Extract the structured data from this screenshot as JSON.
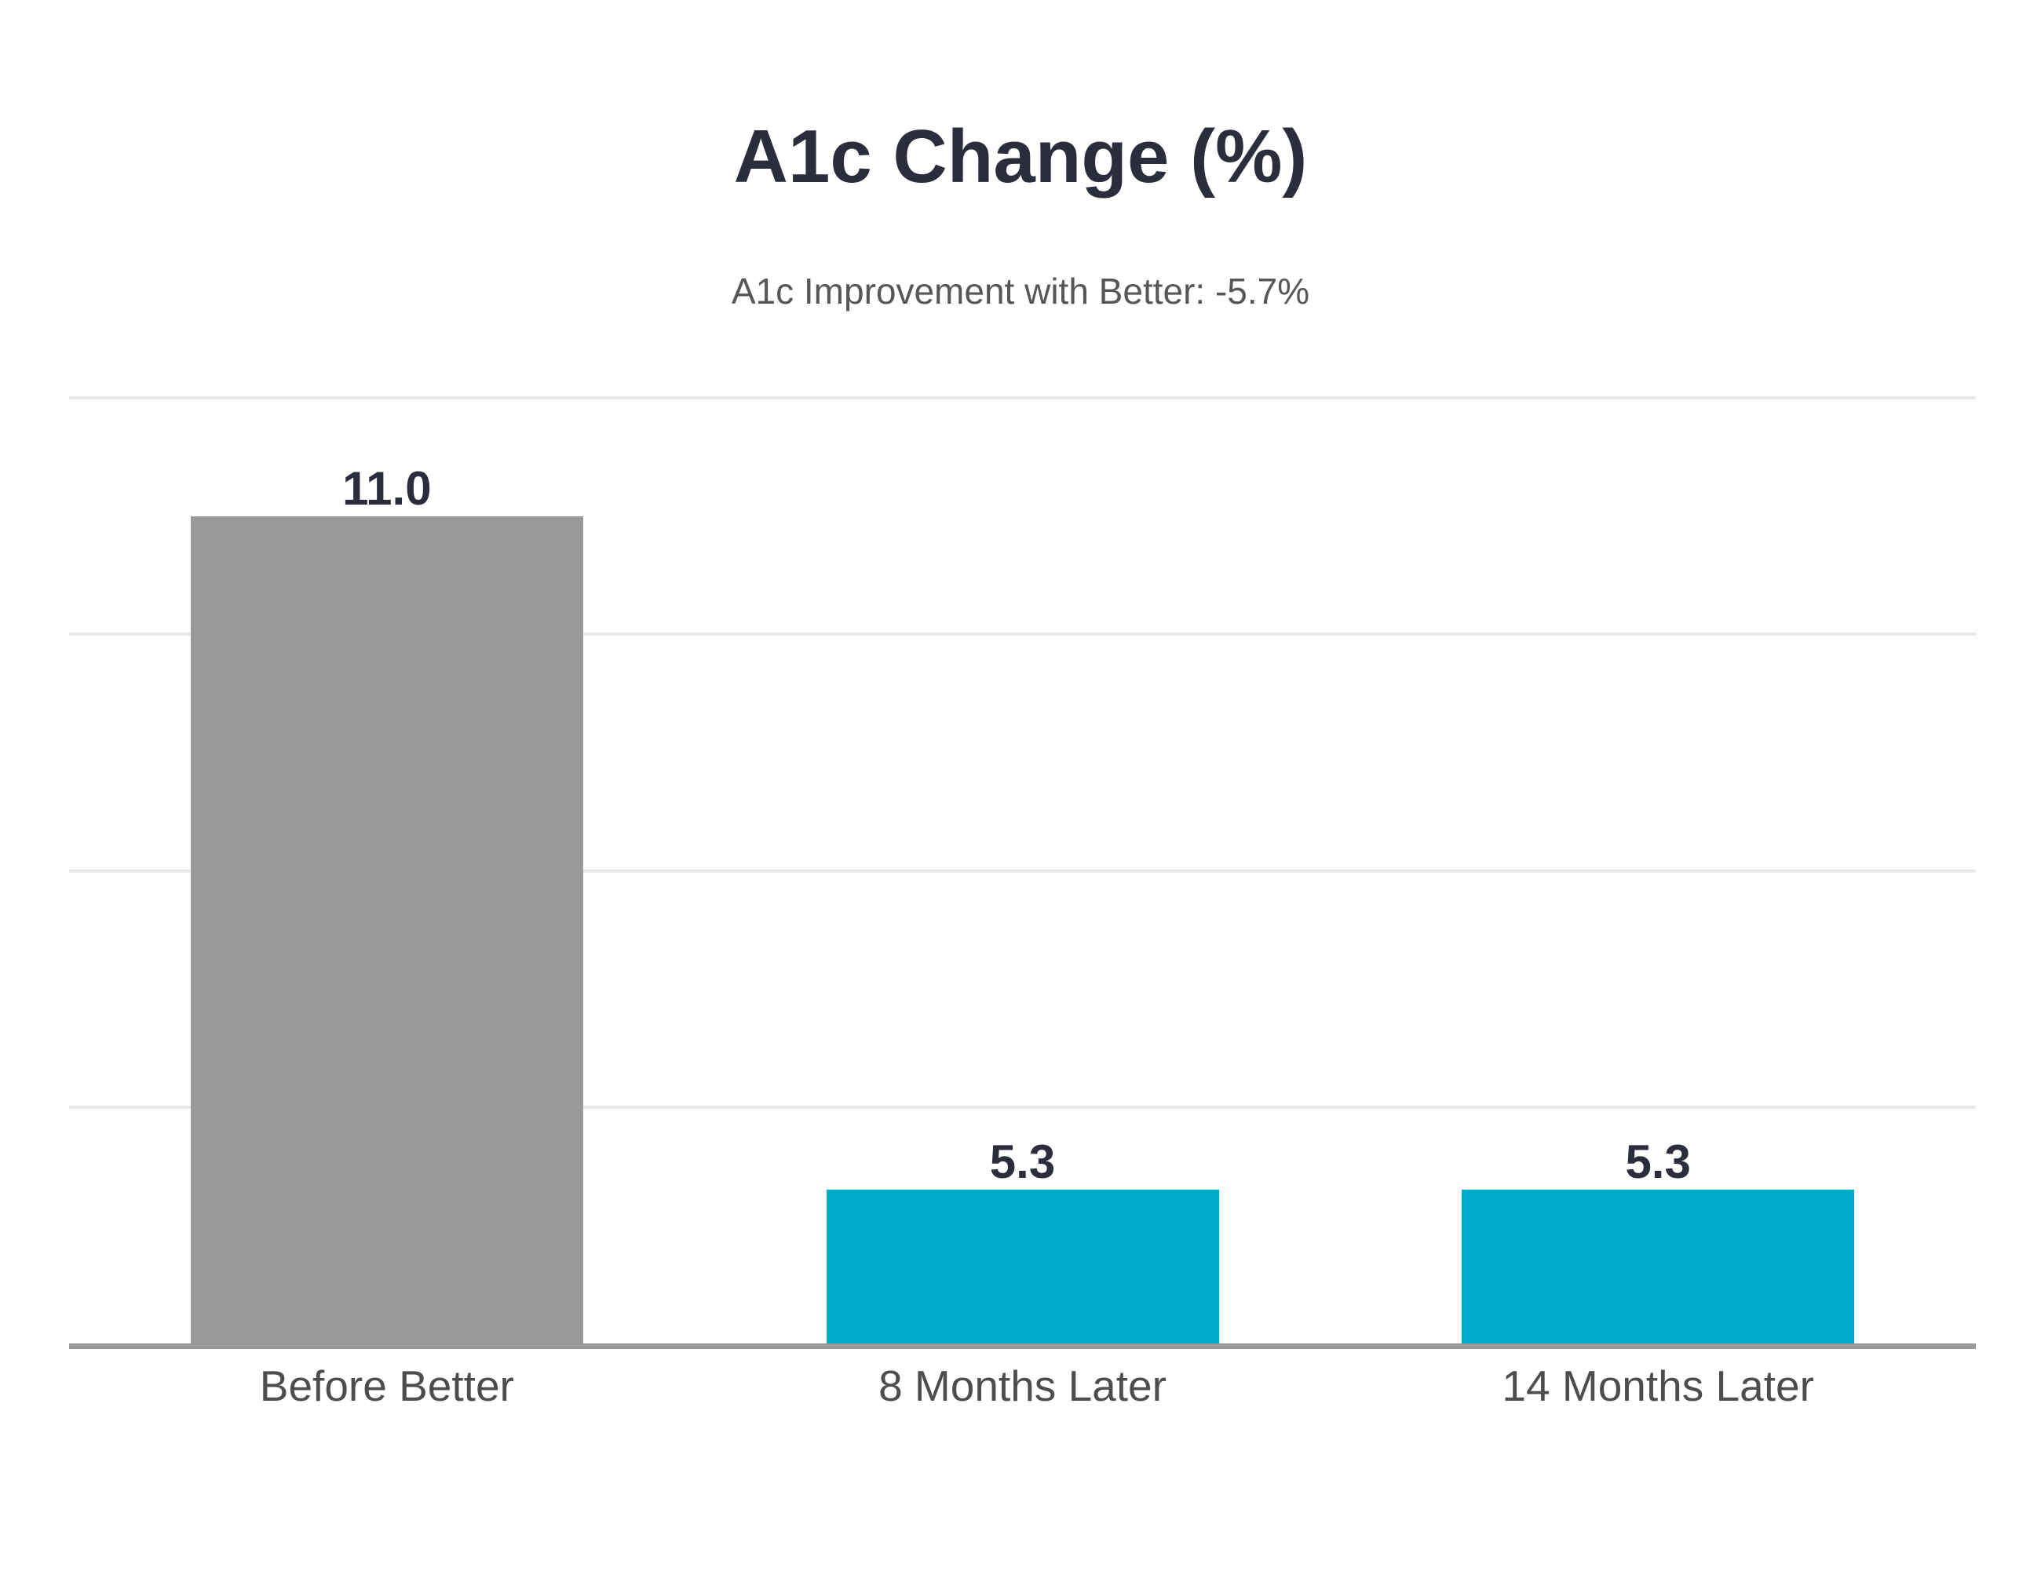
{
  "colors": {
    "background": "#ffffff",
    "title_text": "#2b2d3c",
    "subtitle_text": "#575757",
    "value_label": "#2b2d3c",
    "category_label": "#4d4d4d",
    "axis_line": "#999999",
    "gridline": "#e9e9e9",
    "bar_before": "#999999",
    "bar_after": "#00abca"
  },
  "chart_data": {
    "type": "bar",
    "title": "A1c Change (%)",
    "subtitle": "A1c Improvement with Better: -5.7%",
    "categories": [
      "Before Better",
      "8 Months Later",
      "14 Months Later"
    ],
    "values": [
      11.0,
      5.3,
      5.3
    ],
    "value_labels": [
      "11.0",
      "5.3",
      "5.3"
    ],
    "bar_colors": [
      "#999999",
      "#00abca",
      "#00abca"
    ],
    "xlabel": "",
    "ylabel": "",
    "ylim": [
      4,
      12
    ],
    "gridlines_y": [
      6,
      8,
      10,
      12
    ],
    "grid": true,
    "legend": false,
    "baseline_value": 4
  }
}
